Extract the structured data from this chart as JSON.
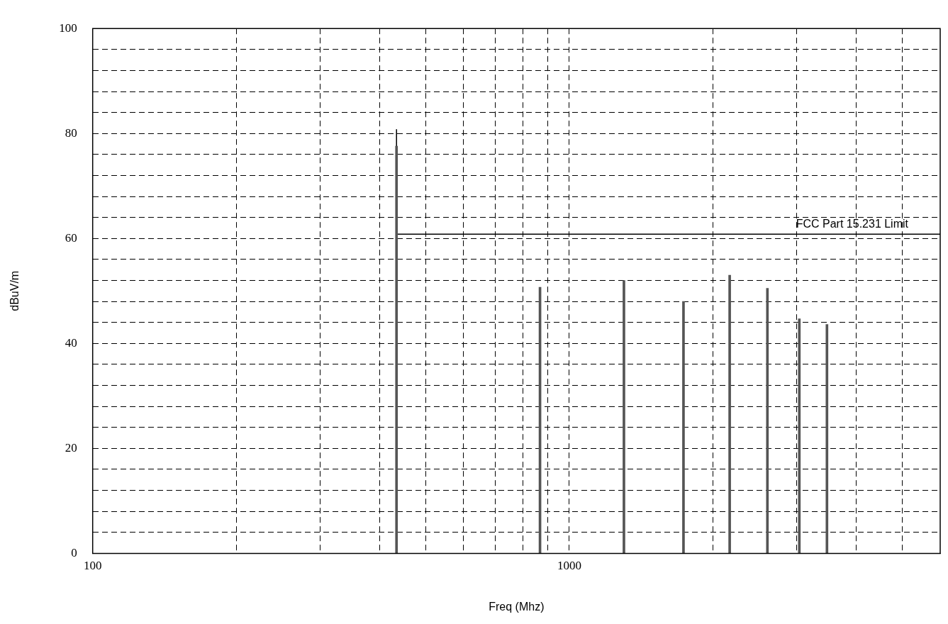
{
  "chart_data": {
    "type": "bar",
    "xlabel": "Freq (Mhz)",
    "ylabel": "dBuV/m",
    "log": "x",
    "grid": true,
    "xlim": [
      100,
      6000
    ],
    "ylim": [
      0,
      100
    ],
    "xticks": [
      100,
      {
        "value": 200,
        "label": null
      },
      {
        "value": 300,
        "label": null
      },
      {
        "value": 400,
        "label": null
      },
      {
        "value": 500,
        "label": null
      },
      {
        "value": 600,
        "label": null
      },
      {
        "value": 700,
        "label": null
      },
      {
        "value": 800,
        "label": null
      },
      {
        "value": 900,
        "label": null
      },
      1000,
      {
        "value": 2000,
        "label": null
      },
      {
        "value": 3000,
        "label": null
      },
      {
        "value": 4000,
        "label": null
      },
      {
        "value": 5000,
        "label": null
      }
    ],
    "yticks": [
      0,
      {
        "value": 4,
        "label": null
      },
      {
        "value": 8,
        "label": null
      },
      {
        "value": 12,
        "label": null
      },
      {
        "value": 16,
        "label": null
      },
      20,
      {
        "value": 24,
        "label": null
      },
      {
        "value": 28,
        "label": null
      },
      {
        "value": 32,
        "label": null
      },
      {
        "value": 36,
        "label": null
      },
      40,
      {
        "value": 44,
        "label": null
      },
      {
        "value": 48,
        "label": null
      },
      {
        "value": 52,
        "label": null
      },
      {
        "value": 56,
        "label": null
      },
      60,
      {
        "value": 64,
        "label": null
      },
      {
        "value": 68,
        "label": null
      },
      {
        "value": 72,
        "label": null
      },
      {
        "value": 76,
        "label": null
      },
      80,
      {
        "value": 84,
        "label": null
      },
      {
        "value": 88,
        "label": null
      },
      {
        "value": 92,
        "label": null
      },
      {
        "value": 96,
        "label": null
      },
      100
    ],
    "series": [
      {
        "color": "#555555",
        "x": [
          434,
          868,
          1302,
          1736,
          2170,
          2604,
          3038,
          3472
        ],
        "values": [
          77.6,
          50.7,
          52,
          48,
          53,
          50.5,
          44.7,
          43.6
        ]
      },
      {
        "type": "step",
        "name": "FCC Part 15.231 Limit",
        "color": "#000000",
        "x": [
          434,
          450,
          6000
        ],
        "values": [
          80.8,
          60.8,
          60.8
        ]
      }
    ]
  }
}
